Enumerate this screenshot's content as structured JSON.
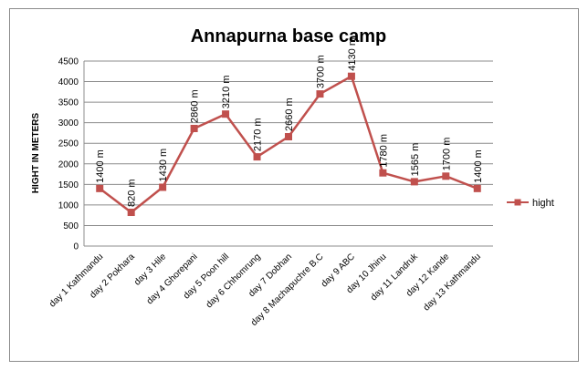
{
  "chart_data": {
    "type": "line",
    "title": "Annapurna base camp",
    "xlabel": "",
    "ylabel": "HIGHT IN METERS",
    "ylim": [
      0,
      4500
    ],
    "ytick_step": 500,
    "grid": true,
    "legend_position": "right",
    "categories": [
      "day 1 Kathmandu",
      "day 2 Pokhara",
      "day 3 Hile",
      "day 4 Ghorepani",
      "day 5 Poon hill",
      "day 6 Chhomrung",
      "day 7 Dobhan",
      "day 8 Machapuchre B.C",
      "day 9 ABC",
      "day 10 Jhinu",
      "day 11 Landruk",
      "day 12 Kande",
      "day 13 Kathmandu"
    ],
    "series": [
      {
        "name": "hight",
        "color": "#c0504d",
        "values": [
          1400,
          820,
          1430,
          2860,
          3210,
          2170,
          2660,
          3700,
          4130,
          1780,
          1565,
          1700,
          1400
        ],
        "data_labels": [
          "1400 m",
          "820 m",
          "1430 m",
          "2860 m",
          "3210 m",
          "2170 m",
          "2660 m",
          "3700 m",
          "4130 m",
          "1780 m",
          "1565 m",
          "1700 m",
          "1400 m"
        ]
      }
    ]
  }
}
